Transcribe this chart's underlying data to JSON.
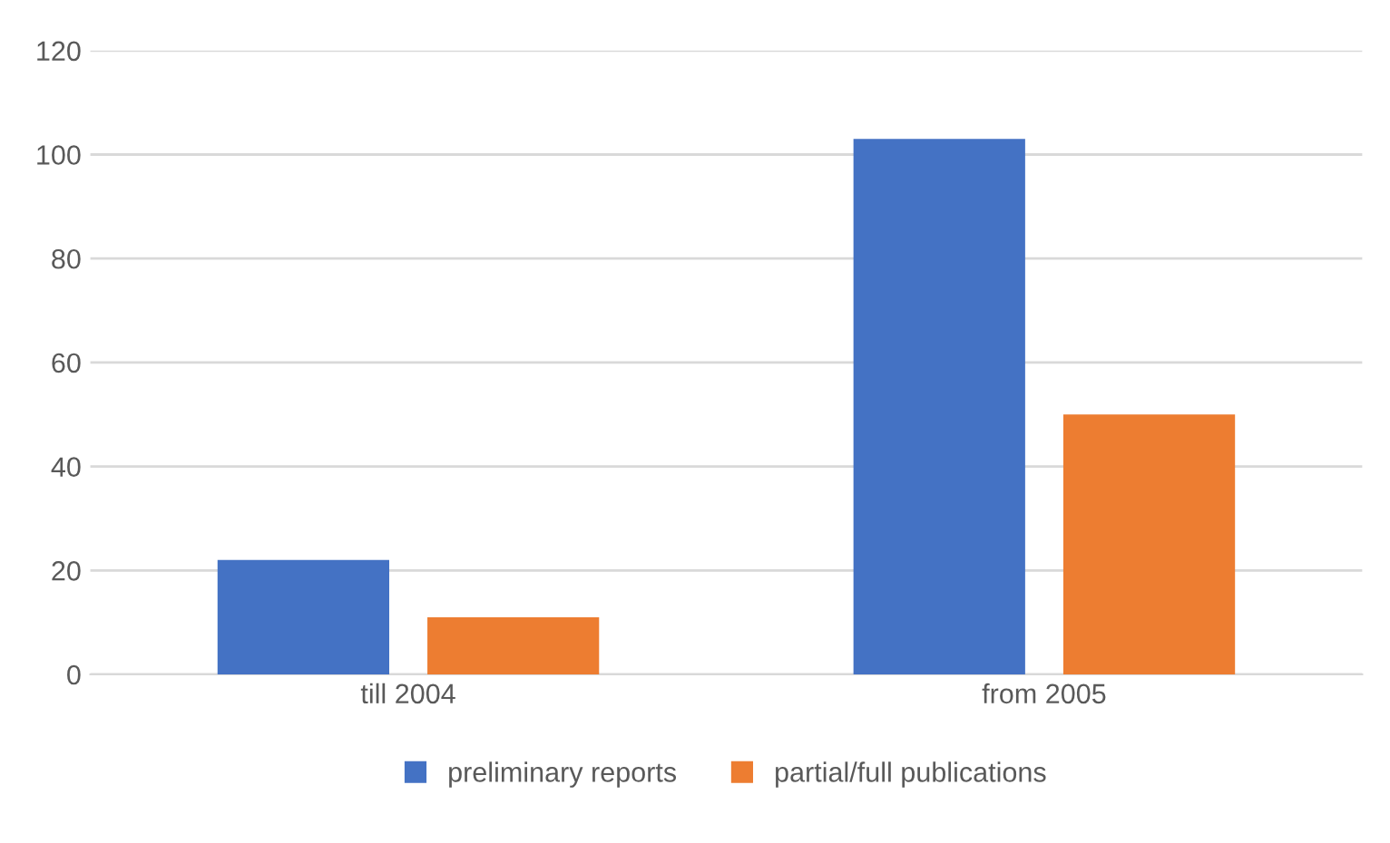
{
  "chart_data": {
    "type": "bar",
    "categories": [
      "till 2004",
      "from 2005"
    ],
    "series": [
      {
        "name": "preliminary reports",
        "color": "#4472c4",
        "values": [
          22,
          103
        ]
      },
      {
        "name": "partial/full publications",
        "color": "#ed7d31",
        "values": [
          11,
          50
        ]
      }
    ],
    "ylim": [
      0,
      120
    ],
    "yticks": [
      0,
      20,
      40,
      60,
      80,
      100,
      120
    ],
    "grid": "y",
    "legend": "bottom"
  }
}
